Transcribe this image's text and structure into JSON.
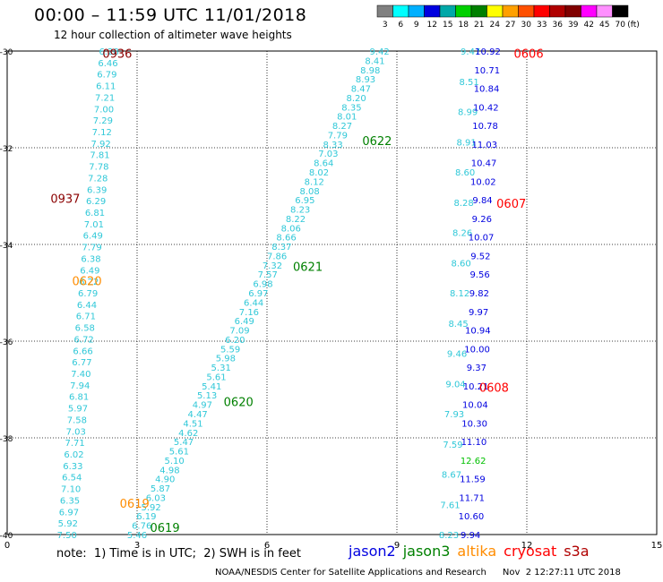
{
  "header": {
    "title": "00:00 – 11:59 UTC 11/01/2018",
    "subtitle": "12 hour collection of altimeter wave heights"
  },
  "colorbar": {
    "labels": [
      "3",
      "6",
      "9",
      "12",
      "15",
      "18",
      "21",
      "24",
      "27",
      "30",
      "33",
      "36",
      "39",
      "42",
      "45",
      "70",
      "(ft)"
    ],
    "colors": [
      "#808080",
      "#00ffff",
      "#00b0ff",
      "#0000e0",
      "#00a8a8",
      "#00d000",
      "#008000",
      "#ffff00",
      "#ffa000",
      "#ff5000",
      "#ff0000",
      "#b00000",
      "#800000",
      "#ff00ff",
      "#ff90ff",
      "#000000"
    ]
  },
  "footer": {
    "note": "note:  1) Time is in UTC;  2) SWH is in feet",
    "satellites": [
      {
        "name": "jason2",
        "color": "#0000e0"
      },
      {
        "name": "jason3",
        "color": "#008000"
      },
      {
        "name": "altika",
        "color": "#ff8c00"
      },
      {
        "name": "cryosat",
        "color": "#ff0000"
      },
      {
        "name": "s3a",
        "color": "#b00000"
      }
    ],
    "credit": "NOAA/NESDIS Center for Satellite Applications and Research",
    "timestamp": "Nov  2 12:27:11 UTC 2018"
  },
  "chart_data": {
    "type": "scatter",
    "x_ticks": [
      0,
      3,
      6,
      9,
      12,
      15
    ],
    "y_ticks": [
      -30,
      -32,
      -34,
      -36,
      -38,
      -40
    ],
    "xlim": [
      0,
      15
    ],
    "ylim": [
      -40,
      -30
    ],
    "grid": true,
    "tracks": [
      {
        "id": "t1",
        "color": "#30c8d8",
        "x_start": 1.38,
        "x_end": 2.35,
        "values": [
          "7.50",
          "5.92",
          "6.97",
          "6.35",
          "7.10",
          "6.54",
          "6.33",
          "6.02",
          "7.71",
          "7.03",
          "7.58",
          "5.97",
          "6.81",
          "7.94",
          "7.40",
          "6.77",
          "6.66",
          "6.72",
          "6.58",
          "6.71",
          "6.44",
          "6.79",
          "6.22",
          "6.49",
          "6.38",
          "7.79",
          "6.49",
          "7.01",
          "6.81",
          "6.29",
          "6.39",
          "7.28",
          "7.78",
          "7.81",
          "7.92",
          "7.12",
          "7.29",
          "7.00",
          "7.21",
          "6.11",
          "6.79",
          "6.46",
          "6.28"
        ]
      },
      {
        "id": "t2",
        "color": "#30c8d8",
        "x_start": 3.0,
        "x_end": 8.6,
        "values": [
          "5.46",
          "6.76",
          "6.19",
          "5.92",
          "6.03",
          "5.87",
          "4.90",
          "4.98",
          "5.10",
          "5.61",
          "5.47",
          "4.62",
          "4.51",
          "4.47",
          "4.97",
          "5.13",
          "5.41",
          "5.61",
          "5.31",
          "5.98",
          "5.59",
          "6.20",
          "7.09",
          "6.49",
          "7.16",
          "6.44",
          "6.97",
          "6.98",
          "7.57",
          "7.32",
          "7.86",
          "8.37",
          "8.66",
          "8.06",
          "8.22",
          "8.23",
          "6.95",
          "8.08",
          "8.12",
          "8.02",
          "8.64",
          "7.03",
          "8.33",
          "7.79",
          "8.27",
          "8.01",
          "8.35",
          "8.20",
          "8.47",
          "8.93",
          "8.98",
          "8.41",
          "9.42"
        ]
      },
      {
        "id": "t3",
        "color": "#30c8d8",
        "x_start": 10.2,
        "x_end": 10.7,
        "values": [
          "8.23",
          "7.61",
          "8.67",
          "7.59",
          "7.93",
          "9.04",
          "9.46",
          "8.45",
          "8.12",
          "8.60",
          "8.26",
          "8.28",
          "8.60",
          "8.91",
          "8.99",
          "8.51",
          "9.47"
        ]
      },
      {
        "id": "t4",
        "color": "#0000e0",
        "x_start": 10.7,
        "x_end": 11.1,
        "values": [
          "9.94",
          "10.60",
          "11.71",
          "11.59",
          "12.62",
          "11.10",
          "10.30",
          "10.04",
          "10.21",
          "9.37",
          "10.00",
          "10.94",
          "9.97",
          "9.82",
          "9.56",
          "9.52",
          "10.07",
          "9.26",
          "9.84",
          "10.02",
          "10.47",
          "11.03",
          "10.78",
          "10.42",
          "10.84",
          "10.71",
          "10.92"
        ]
      }
    ],
    "time_labels": [
      {
        "text": "0936",
        "color": "#8b0000",
        "x": 2.2,
        "y": -30.05
      },
      {
        "text": "0937",
        "color": "#8b0000",
        "x": 1.0,
        "y": -33.05
      },
      {
        "text": "0620",
        "color": "#ff8c00",
        "x": 1.5,
        "y": -34.75
      },
      {
        "text": "0619",
        "color": "#ff8c00",
        "x": 2.6,
        "y": -39.35
      },
      {
        "text": "0619",
        "color": "#008000",
        "x": 3.3,
        "y": -39.85
      },
      {
        "text": "0622",
        "color": "#008000",
        "x": 8.2,
        "y": -31.85
      },
      {
        "text": "0621",
        "color": "#008000",
        "x": 6.6,
        "y": -34.45
      },
      {
        "text": "0620",
        "color": "#008000",
        "x": 5.0,
        "y": -37.25
      },
      {
        "text": "0606",
        "color": "#ff0000",
        "x": 11.7,
        "y": -30.05
      },
      {
        "text": "0607",
        "color": "#ff0000",
        "x": 11.3,
        "y": -33.15
      },
      {
        "text": "0608",
        "color": "#ff0000",
        "x": 10.9,
        "y": -36.95
      }
    ]
  }
}
